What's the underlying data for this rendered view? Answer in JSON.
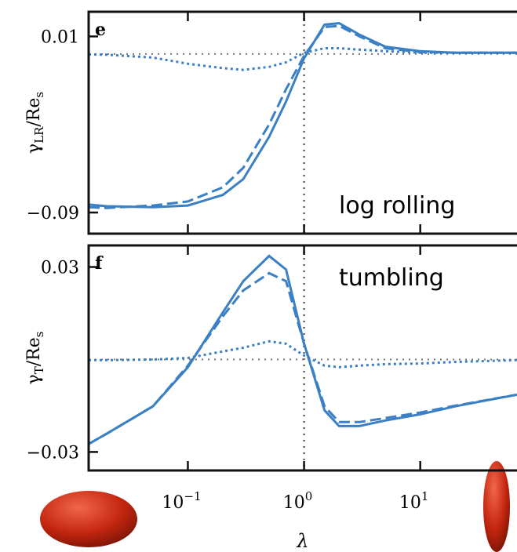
{
  "chart_data": [
    {
      "type": "line",
      "panel_label": "e",
      "annotation": "log rolling",
      "ylabel": [
        "γ",
        "LR",
        "/Re",
        "s"
      ],
      "xscale": "log",
      "xlim": [
        0.014,
        68
      ],
      "xticks": [
        0.1,
        1,
        10
      ],
      "ylim": [
        -0.102,
        0.024
      ],
      "yticks": [
        0.01,
        {
          "value": -0.09,
          "label": "−0.09"
        }
      ],
      "reference_x": 1,
      "reference_y": 0,
      "x": [
        0.014,
        0.02,
        0.05,
        0.1,
        0.2,
        0.3,
        0.5,
        0.7,
        1,
        1.5,
        2,
        3,
        5,
        10,
        20,
        68
      ],
      "series": [
        {
          "style": "solid",
          "color": "#3b7fc4",
          "values": [
            -0.0855,
            -0.0864,
            -0.087,
            -0.086,
            -0.08,
            -0.071,
            -0.047,
            -0.027,
            -0.0024,
            0.0167,
            0.0175,
            0.011,
            0.0042,
            0.0016,
            0.0007,
            0.0007
          ]
        },
        {
          "style": "dashed",
          "color": "#3b7fc4",
          "values": [
            -0.087,
            -0.0874,
            -0.086,
            -0.0837,
            -0.0757,
            -0.0646,
            -0.04,
            -0.02,
            -0.001,
            0.0153,
            0.016,
            0.01,
            0.0033,
            0.0011,
            0.0007,
            0.0007
          ]
        },
        {
          "style": "dotted",
          "color": "#3b7fc4",
          "values": [
            -0.0002,
            -0.0004,
            -0.002,
            -0.0055,
            -0.008,
            -0.009,
            -0.0073,
            -0.0047,
            0.0007,
            0.0033,
            0.0033,
            0.0025,
            0.0016,
            0.0007,
            0.0007,
            0.0007
          ]
        }
      ]
    },
    {
      "type": "line",
      "panel_label": "f",
      "annotation": "tumbling",
      "ylabel": [
        "γ",
        "T",
        "/Re",
        "s"
      ],
      "xlabel": "λ",
      "xscale": "log",
      "xlim": [
        0.014,
        68
      ],
      "xticks": [
        {
          "value": 0.1,
          "label": "10",
          "exponent": "−1"
        },
        {
          "value": 1,
          "label": "10",
          "exponent": "0"
        },
        {
          "value": 10,
          "label": "10",
          "exponent": "1"
        }
      ],
      "ylim": [
        -0.036,
        0.037
      ],
      "yticks": [
        0.03,
        {
          "value": -0.03,
          "label": "−0.03"
        }
      ],
      "reference_x": 1,
      "reference_y": 0,
      "x": [
        0.014,
        0.02,
        0.05,
        0.1,
        0.2,
        0.3,
        0.5,
        0.7,
        1,
        1.5,
        2,
        3,
        5,
        10,
        20,
        68
      ],
      "series": [
        {
          "style": "solid",
          "color": "#3b7fc4",
          "values": [
            -0.0274,
            -0.0241,
            -0.0152,
            -0.0025,
            0.0153,
            0.0254,
            0.0336,
            0.0292,
            0.0051,
            -0.0165,
            -0.0216,
            -0.0216,
            -0.0198,
            -0.0178,
            -0.0152,
            -0.0114
          ]
        },
        {
          "style": "dashed",
          "color": "#3b7fc4",
          "values": [
            -0.0274,
            -0.0241,
            -0.0152,
            -0.002,
            0.014,
            0.0224,
            0.028,
            0.0254,
            0.0051,
            -0.0152,
            -0.0203,
            -0.0203,
            -0.019,
            -0.0172,
            -0.015,
            -0.0114
          ]
        },
        {
          "style": "dotted",
          "color": "#3b7fc4",
          "values": [
            -0.0002,
            -0.0002,
            0,
            0.0005,
            0.0026,
            0.0038,
            0.0059,
            0.0051,
            0.0013,
            -0.002,
            -0.0025,
            -0.002,
            -0.0015,
            -0.0013,
            -0.0008,
            -0.0002
          ]
        }
      ]
    }
  ]
}
